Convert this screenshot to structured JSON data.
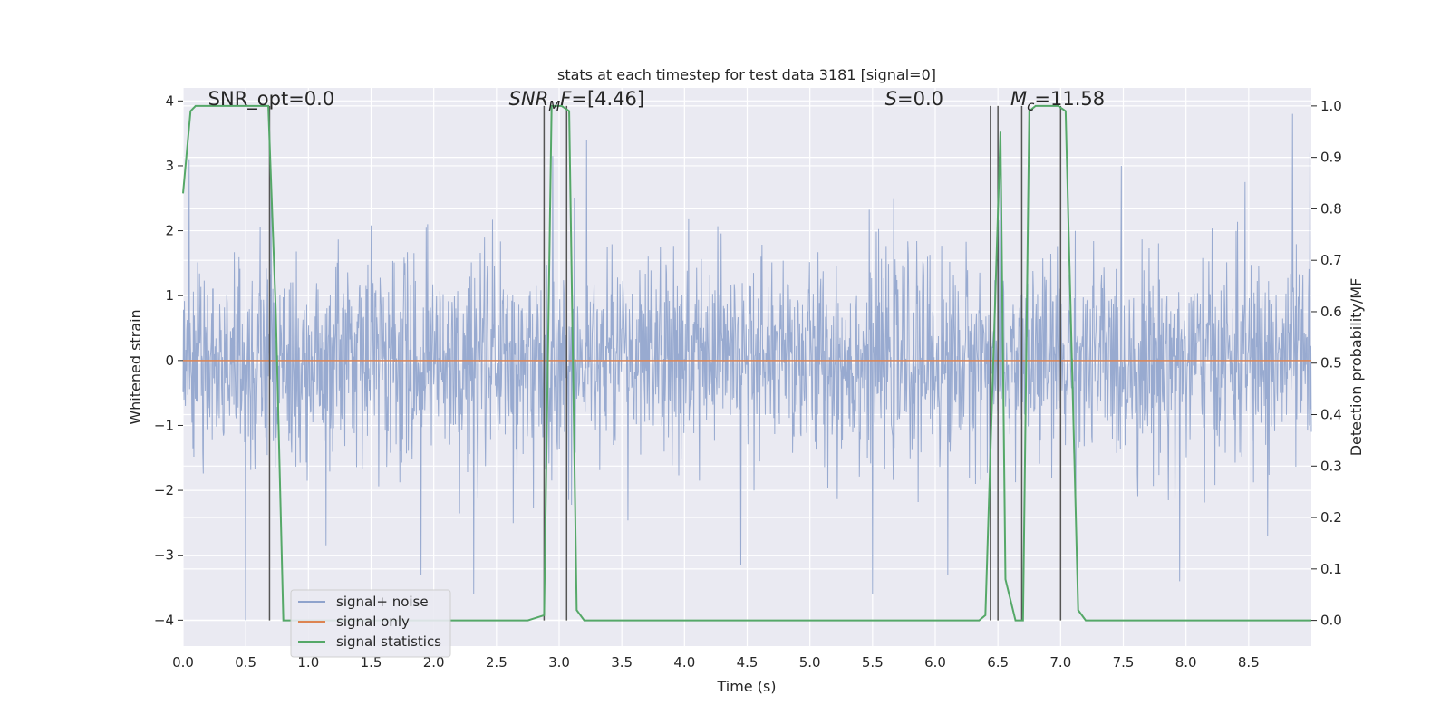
{
  "chart_data": {
    "type": "line",
    "title": "stats at each timestep for test data 3181 [signal=0]",
    "xlabel": "Time (s)",
    "ylabel": "Whitened strain",
    "y2label": "Detection probability/MF",
    "xlim": [
      0,
      9.0
    ],
    "ylim": [
      -4.4,
      4.2
    ],
    "y2lim": [
      -0.05,
      1.035
    ],
    "x_ticks": [
      0.0,
      0.5,
      1.0,
      1.5,
      2.0,
      2.5,
      3.0,
      3.5,
      4.0,
      4.5,
      5.0,
      5.5,
      6.0,
      6.5,
      7.0,
      7.5,
      8.0,
      8.5
    ],
    "x_tick_labels": [
      "0.0",
      "0.5",
      "1.0",
      "1.5",
      "2.0",
      "2.5",
      "3.0",
      "3.5",
      "4.0",
      "4.5",
      "5.0",
      "5.5",
      "6.0",
      "6.5",
      "7.0",
      "7.5",
      "8.0",
      "8.5"
    ],
    "y_ticks": [
      4,
      3,
      2,
      1,
      0,
      -1,
      -2,
      -3,
      -4
    ],
    "y_tick_labels": [
      "4",
      "3",
      "2",
      "1",
      "0",
      "−1",
      "−2",
      "−3",
      "−4"
    ],
    "y2_ticks": [
      1.0,
      0.9,
      0.8,
      0.7,
      0.6,
      0.5,
      0.4,
      0.3,
      0.2,
      0.1,
      0.0
    ],
    "y2_tick_labels": [
      "1.0",
      "0.9",
      "0.8",
      "0.7",
      "0.6",
      "0.5",
      "0.4",
      "0.3",
      "0.2",
      "0.1",
      "0.0"
    ],
    "annotations": [
      {
        "x": 0.2,
        "y": 1.0,
        "text": "SNR_opt=0.0",
        "italic": false
      },
      {
        "x": 2.6,
        "y": 1.0,
        "text": "SNR_MF=[4.46]",
        "italic": false,
        "prefix": "SNR",
        "sub": "M",
        "suffix": "F=[4.46]"
      },
      {
        "x": 5.6,
        "y": 1.0,
        "text": "S=0.0",
        "italic": false,
        "prefix": "S",
        "suffix": "=0.0"
      },
      {
        "x": 6.6,
        "y": 1.0,
        "text": "M_c=11.58",
        "italic": false,
        "prefix": "M",
        "sub": "c",
        "suffix": "=11.58"
      }
    ],
    "legend": {
      "placement": "lower-left",
      "entries": [
        {
          "label": "signal+ noise",
          "color": "#8fa3cc"
        },
        {
          "label": "signal only",
          "color": "#dd8452"
        },
        {
          "label": "signal statistics",
          "color": "#55a868"
        }
      ]
    },
    "series": [
      {
        "name": "signal+ noise",
        "color": "#8fa3cc",
        "description": "whitened strain noise, roughly Gaussian, std ~1, spanning -4 to 4",
        "peaks_high": [
          [
            0.05,
            3.1
          ],
          [
            0.7,
            2.75
          ],
          [
            1.95,
            2.1
          ],
          [
            2.95,
            3.15
          ],
          [
            3.22,
            3.4
          ],
          [
            6.52,
            3.4
          ],
          [
            8.47,
            2.75
          ],
          [
            8.85,
            3.8
          ],
          [
            8.99,
            3.2
          ]
        ],
        "peaks_low": [
          [
            0.5,
            -4.0
          ],
          [
            1.9,
            -3.3
          ],
          [
            2.32,
            -3.6
          ],
          [
            4.45,
            -3.15
          ],
          [
            5.5,
            -3.6
          ],
          [
            6.1,
            -3.3
          ],
          [
            7.95,
            -3.4
          ],
          [
            8.65,
            -2.7
          ]
        ]
      },
      {
        "name": "signal only",
        "color": "#dd8452",
        "x": [
          0.0,
          9.0
        ],
        "y": [
          0.0,
          0.0
        ]
      },
      {
        "name": "signal statistics",
        "color": "#55a868",
        "axis": "right",
        "x": [
          0.0,
          0.03,
          0.06,
          0.1,
          0.6,
          0.68,
          0.74,
          0.8,
          0.82,
          2.75,
          2.88,
          2.94,
          3.02,
          3.08,
          3.14,
          3.2,
          6.35,
          6.4,
          6.52,
          6.56,
          6.64,
          6.7,
          6.75,
          6.8,
          6.98,
          7.04,
          7.14,
          7.2,
          9.0
        ],
        "y": [
          0.83,
          0.91,
          0.99,
          1.0,
          1.0,
          1.0,
          0.6,
          0.0,
          0.0,
          0.0,
          0.01,
          1.0,
          1.0,
          0.99,
          0.02,
          0.0,
          0.0,
          0.01,
          0.95,
          0.08,
          0.0,
          0.0,
          0.99,
          1.0,
          1.0,
          0.99,
          0.02,
          0.0,
          0.0
        ]
      }
    ],
    "vertical_markers": {
      "color": "#555555",
      "x": [
        0.69,
        2.88,
        3.06,
        6.44,
        6.5,
        6.69,
        7.0
      ],
      "y2_from": 0.0,
      "y2_to": 1.0
    },
    "grid": true
  }
}
